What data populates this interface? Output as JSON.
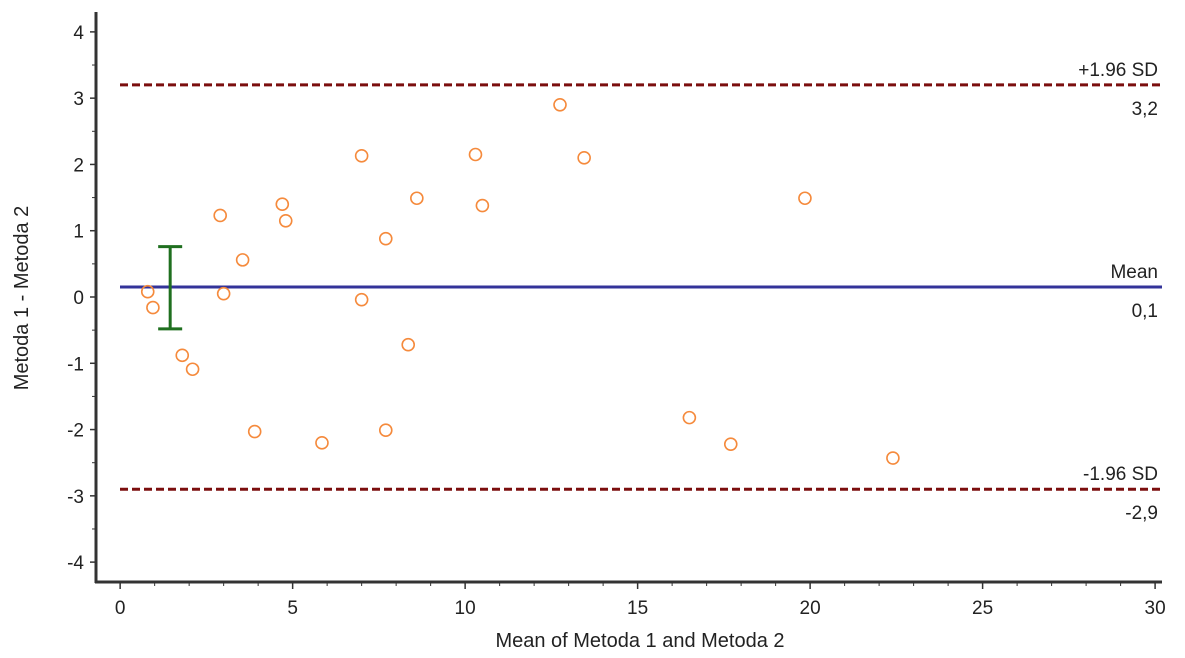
{
  "chart_data": {
    "type": "scatter",
    "subtype": "bland-altman",
    "xlabel": "Mean of Metoda 1 and Metoda 2",
    "ylabel": "Metoda 1 - Metoda 2",
    "xlim": [
      -0.7,
      30.2
    ],
    "ylim": [
      -4.3,
      4.3
    ],
    "x_ticks": [
      0,
      5,
      10,
      15,
      20,
      25,
      30
    ],
    "y_ticks": [
      4,
      3,
      2,
      1,
      0,
      -1,
      -2,
      -3,
      -4
    ],
    "x_tick_labels": [
      "0",
      "5",
      "10",
      "15",
      "20",
      "25",
      "30"
    ],
    "y_tick_labels": [
      "4",
      "3",
      "2",
      "1",
      "0",
      "-1",
      "-2",
      "-3",
      "-4"
    ],
    "grid": false,
    "points": [
      {
        "x": 0.8,
        "y": 0.08
      },
      {
        "x": 0.95,
        "y": -0.16
      },
      {
        "x": 1.8,
        "y": -0.88
      },
      {
        "x": 2.1,
        "y": -1.09
      },
      {
        "x": 2.9,
        "y": 1.23
      },
      {
        "x": 3.0,
        "y": 0.05
      },
      {
        "x": 3.55,
        "y": 0.56
      },
      {
        "x": 3.9,
        "y": -2.03
      },
      {
        "x": 4.7,
        "y": 1.4
      },
      {
        "x": 4.8,
        "y": 1.15
      },
      {
        "x": 5.85,
        "y": -2.2
      },
      {
        "x": 7.0,
        "y": 2.13
      },
      {
        "x": 7.0,
        "y": -0.04
      },
      {
        "x": 7.7,
        "y": 0.88
      },
      {
        "x": 7.7,
        "y": -2.01
      },
      {
        "x": 8.35,
        "y": -0.72
      },
      {
        "x": 8.6,
        "y": 1.49
      },
      {
        "x": 10.3,
        "y": 2.15
      },
      {
        "x": 10.5,
        "y": 1.38
      },
      {
        "x": 12.75,
        "y": 2.9
      },
      {
        "x": 13.45,
        "y": 2.1
      },
      {
        "x": 16.5,
        "y": -1.82
      },
      {
        "x": 17.7,
        "y": -2.22
      },
      {
        "x": 19.85,
        "y": 1.49
      },
      {
        "x": 22.4,
        "y": -2.43
      }
    ],
    "point_color": "#f58a3c",
    "mean_line": {
      "value": 0.15,
      "label": "Mean",
      "value_label": "0,1",
      "color": "#333399"
    },
    "upper_loa": {
      "value": 3.2,
      "label": "+1.96 SD",
      "value_label": "3,2",
      "color": "#7b0e0e"
    },
    "lower_loa": {
      "value": -2.9,
      "label": "-1.96 SD",
      "value_label": "-2,9",
      "color": "#7b0e0e"
    },
    "mean_ci_bar": {
      "x": 1.45,
      "low": -0.48,
      "high": 0.76,
      "color": "#1f6f1f"
    },
    "axis_color": "#333333"
  }
}
